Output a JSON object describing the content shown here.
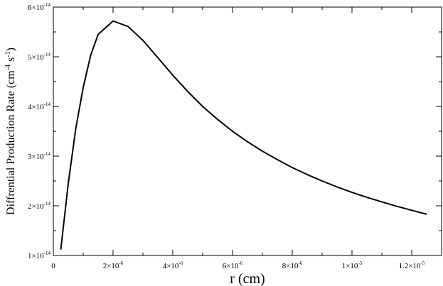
{
  "chart_data": {
    "type": "line",
    "title": "",
    "xlabel": "r (cm)",
    "ylabel_parts": {
      "prefix": "Diffrential Production Rate (cm",
      "exp1": "-4",
      "middle": " s",
      "exp2": "-1",
      "suffix": ")"
    },
    "xlim": [
      0,
      1.3e-05
    ],
    "ylim": [
      1e-14,
      6e-14
    ],
    "grid": false,
    "x_ticks": [
      {
        "value": 0,
        "mantissa": "0",
        "exp": ""
      },
      {
        "value": 2e-06,
        "mantissa": "2×10",
        "exp": "-6"
      },
      {
        "value": 4e-06,
        "mantissa": "4×10",
        "exp": "-6"
      },
      {
        "value": 6e-06,
        "mantissa": "6×10",
        "exp": "-6"
      },
      {
        "value": 8e-06,
        "mantissa": "8×10",
        "exp": "-6"
      },
      {
        "value": 1e-05,
        "mantissa": "1×10",
        "exp": "-5"
      },
      {
        "value": 1.2e-05,
        "mantissa": "1.2×10",
        "exp": "-5"
      }
    ],
    "y_ticks": [
      {
        "value": 1e-14,
        "mantissa": "1×10",
        "exp": "-14"
      },
      {
        "value": 2e-14,
        "mantissa": "2×10",
        "exp": "-14"
      },
      {
        "value": 3e-14,
        "mantissa": "3×10",
        "exp": "-14"
      },
      {
        "value": 4e-14,
        "mantissa": "4×10",
        "exp": "-14"
      },
      {
        "value": 5e-14,
        "mantissa": "5×10",
        "exp": "-14"
      },
      {
        "value": 6e-14,
        "mantissa": "6×10",
        "exp": "-14"
      }
    ],
    "series": [
      {
        "color": "#000000",
        "x": [
          2.5e-07,
          5e-07,
          7.5e-07,
          1e-06,
          1.25e-06,
          1.5e-06,
          2e-06,
          2.5e-06,
          3e-06,
          3.5e-06,
          4e-06,
          4.5e-06,
          5e-06,
          5.5e-06,
          6e-06,
          6.5e-06,
          7e-06,
          7.5e-06,
          8e-06,
          8.5e-06,
          9e-06,
          9.5e-06,
          1e-05,
          1.05e-05,
          1.1e-05,
          1.15e-05,
          1.2e-05,
          1.25e-05
        ],
        "y": [
          1.12e-14,
          2.45e-14,
          3.55e-14,
          4.38e-14,
          5.03e-14,
          5.45e-14,
          5.72e-14,
          5.61e-14,
          5.33e-14,
          4.98e-14,
          4.63e-14,
          4.3e-14,
          4e-14,
          3.74e-14,
          3.5e-14,
          3.29e-14,
          3.1e-14,
          2.93e-14,
          2.77e-14,
          2.63e-14,
          2.5e-14,
          2.38e-14,
          2.27e-14,
          2.17e-14,
          2.08e-14,
          1.99e-14,
          1.91e-14,
          1.83e-14
        ]
      }
    ]
  }
}
